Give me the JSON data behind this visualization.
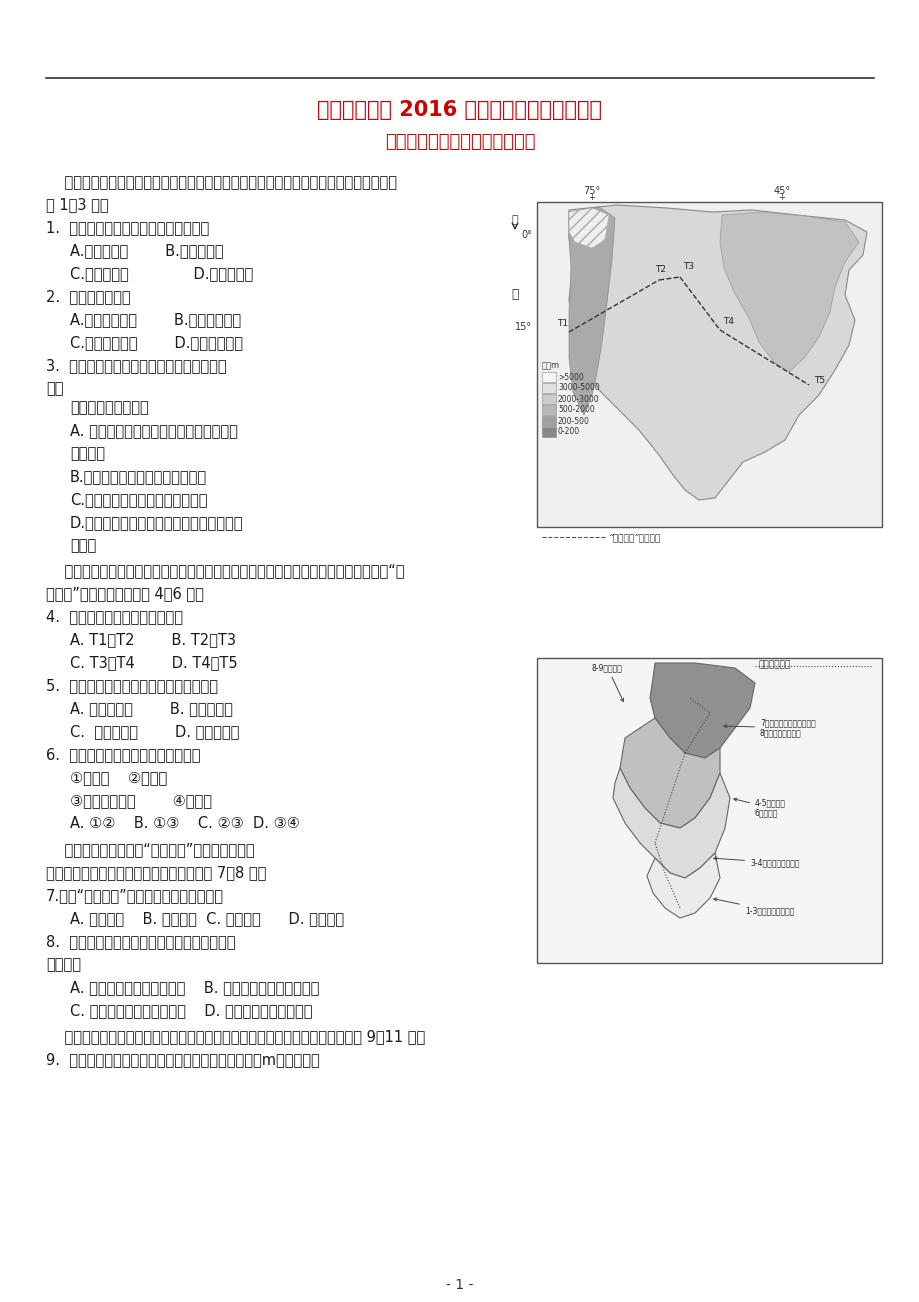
{
  "bg_color": "#ffffff",
  "line_color": "#333333",
  "title1": "汕头金山中学 2016 屆高三第一学期期中试题",
  "title2": "文科综合能力测试（地理试题）",
  "title_color": "#cc0000",
  "page_number": "- 1 -"
}
